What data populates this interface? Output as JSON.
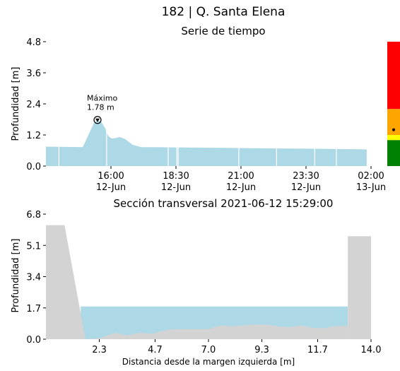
{
  "page": {
    "title": "182 | Q. Santa Elena"
  },
  "colors": {
    "water": "#add8e6",
    "ground": "#d3d3d3",
    "status_red": "#ff0000",
    "status_orange": "#ffa500",
    "status_yellow": "#ffff00",
    "status_green": "#008000"
  },
  "chart_data": [
    {
      "type": "area",
      "title": "Serie de tiempo",
      "ylabel": "Profundidad [m]",
      "xlabel": "",
      "ylim": [
        0,
        4.8
      ],
      "xlim": [
        "2021-06-12 13:30",
        "2021-06-13 02:00"
      ],
      "yticks": [
        "0.0",
        "1.2",
        "2.4",
        "3.6",
        "4.8"
      ],
      "xticks": [
        {
          "at": "2021-06-12 16:00",
          "line1": "16:00",
          "line2": "12-Jun"
        },
        {
          "at": "2021-06-12 18:30",
          "line1": "18:30",
          "line2": "12-Jun"
        },
        {
          "at": "2021-06-12 21:00",
          "line1": "21:00",
          "line2": "12-Jun"
        },
        {
          "at": "2021-06-12 23:30",
          "line1": "23:30",
          "line2": "12-Jun"
        },
        {
          "at": "2021-06-13 02:00",
          "line1": "02:00",
          "line2": "13-Jun"
        }
      ],
      "series": [
        {
          "x": [
            "2021-06-12 13:30",
            "2021-06-12 14:15",
            "2021-06-12 14:55",
            "2021-06-12 15:08",
            "2021-06-12 15:20",
            "2021-06-12 15:29",
            "2021-06-12 15:38",
            "2021-06-12 15:47",
            "2021-06-12 15:54",
            "2021-06-12 16:02",
            "2021-06-12 16:10",
            "2021-06-12 16:20",
            "2021-06-12 16:32",
            "2021-06-12 16:50",
            "2021-06-12 17:10",
            "2021-06-12 17:40",
            "2021-06-12 18:30",
            "2021-06-12 19:30",
            "2021-06-12 20:30",
            "2021-06-12 21:30",
            "2021-06-12 22:30",
            "2021-06-12 23:30",
            "2021-06-13 00:30",
            "2021-06-13 01:30",
            "2021-06-13 01:50"
          ],
          "y": [
            0.75,
            0.74,
            0.73,
            1.2,
            1.64,
            1.78,
            1.7,
            1.45,
            1.15,
            1.06,
            1.08,
            1.12,
            1.05,
            0.82,
            0.73,
            0.73,
            0.72,
            0.71,
            0.7,
            0.69,
            0.68,
            0.67,
            0.66,
            0.65,
            0.64
          ]
        }
      ],
      "annotation": {
        "label": "Máximo",
        "value": "1.78 m",
        "x": "2021-06-12 15:29",
        "y": 1.78
      },
      "gaps": [
        "2021-06-12 14:00",
        "2021-06-12 15:50",
        "2021-06-12 18:12",
        "2021-06-12 18:32",
        "2021-06-12 18:35",
        "2021-06-12 20:55",
        "2021-06-12 22:22",
        "2021-06-12 23:50",
        "2021-06-13 00:40"
      ],
      "status_bar": {
        "segments": [
          {
            "color_key": "status_red",
            "from": 2.2,
            "to": 4.8
          },
          {
            "color_key": "status_orange",
            "from": 1.2,
            "to": 2.2
          },
          {
            "color_key": "status_yellow",
            "from": 1.0,
            "to": 1.2
          },
          {
            "color_key": "status_green",
            "from": 0.0,
            "to": 1.0
          }
        ],
        "marker_value": 1.4
      }
    },
    {
      "type": "area",
      "title": "Sección transversal 2021-06-12 15:29:00",
      "xlabel": "Distancia desde la margen izquierda [m]",
      "ylabel": "Profundidad [m]",
      "xlim": [
        0,
        14.0
      ],
      "ylim": [
        0,
        6.8
      ],
      "xticks": [
        "2.3",
        "4.7",
        "7.0",
        "9.3",
        "11.7",
        "14.0"
      ],
      "yticks": [
        "0.0",
        "1.7",
        "3.4",
        "5.1",
        "6.8"
      ],
      "water_level": 1.78,
      "water_x": [
        1.5,
        13.0
      ],
      "ground": {
        "x": [
          0,
          0.8,
          1.7,
          2.3,
          3.0,
          3.5,
          4.0,
          4.6,
          5.0,
          5.5,
          6.0,
          7.0,
          7.5,
          8.0,
          8.5,
          9.0,
          9.5,
          10.0,
          10.5,
          11.0,
          11.5,
          12.0,
          12.5,
          13.0
        ],
        "y": [
          6.2,
          6.2,
          0.0,
          0.05,
          0.35,
          0.2,
          0.35,
          0.3,
          0.45,
          0.55,
          0.55,
          0.55,
          0.75,
          0.7,
          0.75,
          0.8,
          0.8,
          0.7,
          0.65,
          0.75,
          0.62,
          0.6,
          0.72,
          0.72
        ]
      },
      "right_bank": {
        "x": [
          13.0,
          14.0
        ],
        "y": 5.6
      }
    }
  ]
}
